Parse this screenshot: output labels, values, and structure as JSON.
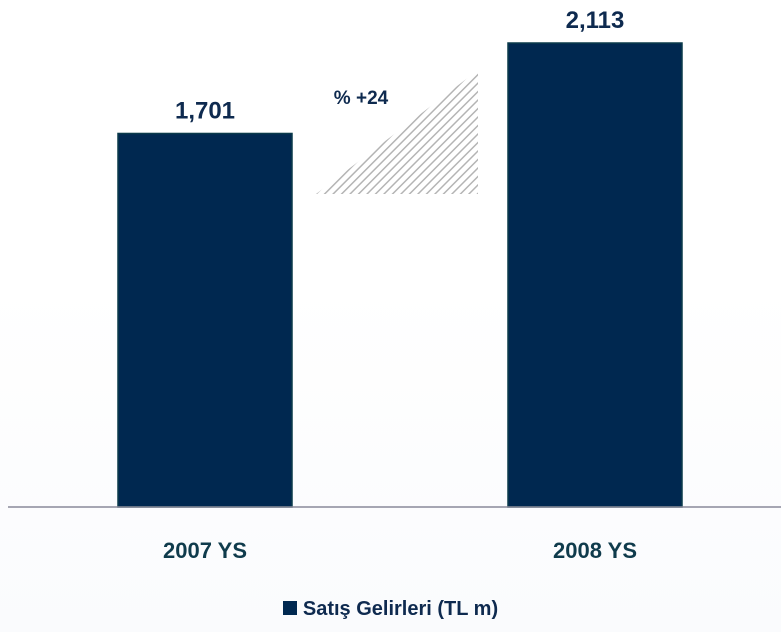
{
  "chart_data": {
    "type": "bar",
    "categories": [
      "2007 YS",
      "2008 YS"
    ],
    "series": [
      {
        "name": "Satış Gelirleri (TL m)",
        "values": [
          1701,
          2113
        ]
      }
    ],
    "value_labels": [
      "1,701",
      "2,113"
    ],
    "change_annotation": "% +24",
    "ylim": [
      0,
      2300
    ],
    "grid": false,
    "legend_position": "bottom-center",
    "colors": {
      "bar": "#002850",
      "bar_border": "#0a3a4a",
      "label": "#0e2a4f",
      "category_label": "#0f3b4c",
      "hatch": "#b0b0b0",
      "axis": "#8a8a9a"
    }
  }
}
